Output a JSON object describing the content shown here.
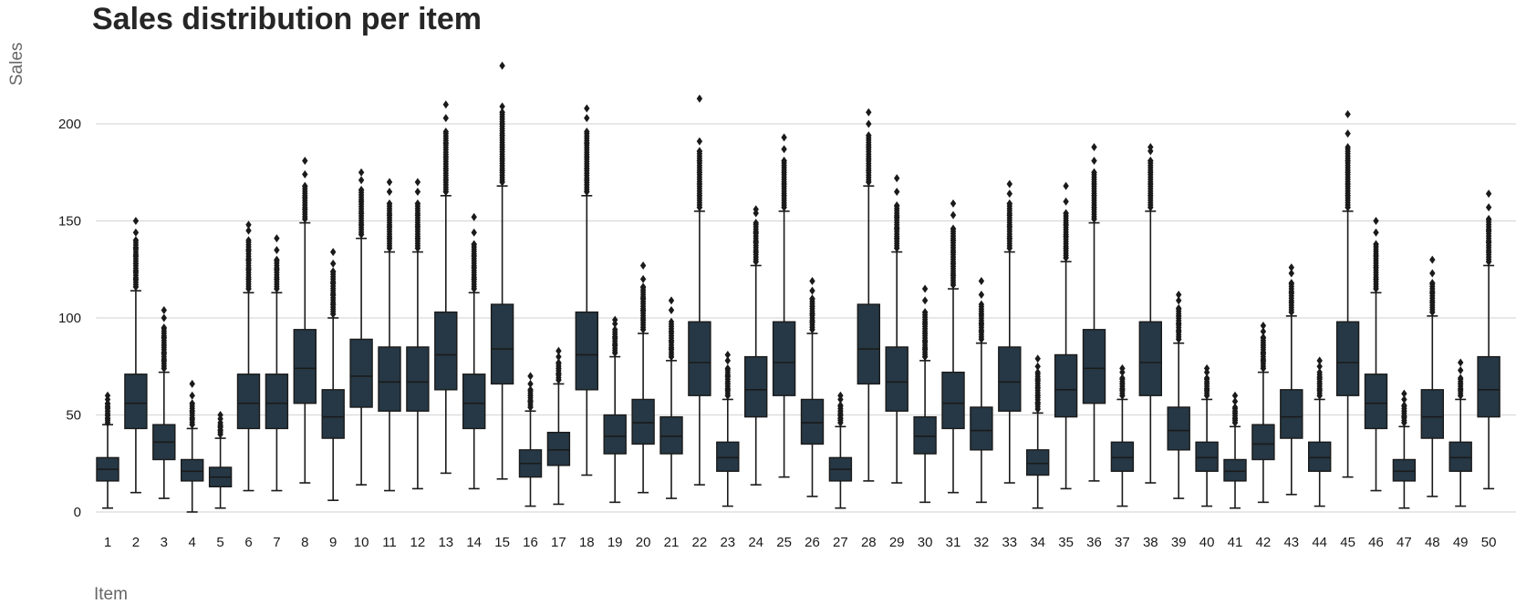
{
  "chart_data": {
    "type": "boxplot",
    "title": "Sales distribution per item",
    "xlabel": "Item",
    "ylabel": "Sales",
    "ylim": [
      0,
      230
    ],
    "yticks": [
      0,
      50,
      100,
      150,
      200
    ],
    "grid": "horizontal",
    "box_color": "#263845",
    "line_color": "#1a1a1a",
    "outlier_marker": "diamond",
    "categories": [
      "1",
      "2",
      "3",
      "4",
      "5",
      "6",
      "7",
      "8",
      "9",
      "10",
      "11",
      "12",
      "13",
      "14",
      "15",
      "16",
      "17",
      "18",
      "19",
      "20",
      "21",
      "22",
      "23",
      "24",
      "25",
      "26",
      "27",
      "28",
      "29",
      "30",
      "31",
      "32",
      "33",
      "34",
      "35",
      "36",
      "37",
      "38",
      "39",
      "40",
      "41",
      "42",
      "43",
      "44",
      "45",
      "46",
      "47",
      "48",
      "49",
      "50"
    ],
    "boxes": [
      {
        "whislo": 2,
        "q1": 16,
        "med": 22,
        "q3": 28,
        "whishi": 45,
        "fliers": [
          46,
          48,
          50,
          52,
          54,
          56,
          58,
          60
        ]
      },
      {
        "whislo": 10,
        "q1": 43,
        "med": 56,
        "q3": 71,
        "whishi": 114,
        "fliers": [
          116,
          120,
          124,
          128,
          132,
          136,
          140,
          144,
          150
        ]
      },
      {
        "whislo": 7,
        "q1": 27,
        "med": 36,
        "q3": 45,
        "whishi": 72,
        "fliers": [
          74,
          78,
          82,
          86,
          90,
          95,
          100,
          104
        ]
      },
      {
        "whislo": 0,
        "q1": 16,
        "med": 21,
        "q3": 27,
        "whishi": 43,
        "fliers": [
          45,
          48,
          52,
          56,
          60,
          66
        ]
      },
      {
        "whislo": 2,
        "q1": 13,
        "med": 18,
        "q3": 23,
        "whishi": 38,
        "fliers": [
          40,
          42,
          44,
          46,
          48,
          50
        ]
      },
      {
        "whislo": 11,
        "q1": 43,
        "med": 56,
        "q3": 71,
        "whishi": 113,
        "fliers": [
          115,
          120,
          125,
          130,
          135,
          140,
          145,
          148
        ]
      },
      {
        "whislo": 11,
        "q1": 43,
        "med": 56,
        "q3": 71,
        "whishi": 113,
        "fliers": [
          115,
          120,
          125,
          130,
          135,
          141
        ]
      },
      {
        "whislo": 15,
        "q1": 56,
        "med": 74,
        "q3": 94,
        "whishi": 149,
        "fliers": [
          151,
          156,
          162,
          168,
          174,
          181
        ]
      },
      {
        "whislo": 6,
        "q1": 38,
        "med": 49,
        "q3": 63,
        "whishi": 100,
        "fliers": [
          102,
          107,
          112,
          118,
          124,
          128,
          134
        ]
      },
      {
        "whislo": 14,
        "q1": 54,
        "med": 70,
        "q3": 89,
        "whishi": 141,
        "fliers": [
          143,
          148,
          154,
          160,
          166,
          171,
          175
        ]
      },
      {
        "whislo": 11,
        "q1": 52,
        "med": 67,
        "q3": 85,
        "whishi": 134,
        "fliers": [
          136,
          141,
          147,
          153,
          159,
          165,
          170
        ]
      },
      {
        "whislo": 12,
        "q1": 52,
        "med": 67,
        "q3": 85,
        "whishi": 134,
        "fliers": [
          136,
          141,
          147,
          153,
          159,
          165,
          170
        ]
      },
      {
        "whislo": 20,
        "q1": 63,
        "med": 81,
        "q3": 103,
        "whishi": 163,
        "fliers": [
          165,
          171,
          177,
          183,
          190,
          196,
          203,
          210
        ]
      },
      {
        "whislo": 12,
        "q1": 43,
        "med": 56,
        "q3": 71,
        "whishi": 113,
        "fliers": [
          115,
          120,
          126,
          132,
          138,
          144,
          152
        ]
      },
      {
        "whislo": 17,
        "q1": 66,
        "med": 84,
        "q3": 107,
        "whishi": 168,
        "fliers": [
          170,
          176,
          182,
          188,
          194,
          200,
          206,
          209,
          230
        ]
      },
      {
        "whislo": 3,
        "q1": 18,
        "med": 25,
        "q3": 32,
        "whishi": 52,
        "fliers": [
          54,
          57,
          60,
          63,
          66,
          70
        ]
      },
      {
        "whislo": 4,
        "q1": 24,
        "med": 32,
        "q3": 41,
        "whishi": 66,
        "fliers": [
          68,
          71,
          74,
          77,
          80,
          83
        ]
      },
      {
        "whislo": 19,
        "q1": 63,
        "med": 81,
        "q3": 103,
        "whishi": 163,
        "fliers": [
          165,
          171,
          177,
          183,
          190,
          196,
          203,
          208
        ]
      },
      {
        "whislo": 5,
        "q1": 30,
        "med": 39,
        "q3": 50,
        "whishi": 80,
        "fliers": [
          82,
          86,
          90,
          94,
          97,
          99
        ]
      },
      {
        "whislo": 10,
        "q1": 35,
        "med": 46,
        "q3": 58,
        "whishi": 92,
        "fliers": [
          94,
          99,
          104,
          110,
          116,
          120,
          127
        ]
      },
      {
        "whislo": 7,
        "q1": 30,
        "med": 39,
        "q3": 49,
        "whishi": 78,
        "fliers": [
          80,
          84,
          88,
          93,
          98,
          104,
          109
        ]
      },
      {
        "whislo": 14,
        "q1": 60,
        "med": 77,
        "q3": 98,
        "whishi": 155,
        "fliers": [
          157,
          163,
          169,
          175,
          181,
          186,
          191,
          213
        ]
      },
      {
        "whislo": 3,
        "q1": 21,
        "med": 28,
        "q3": 36,
        "whishi": 58,
        "fliers": [
          60,
          63,
          66,
          70,
          74,
          78,
          81
        ]
      },
      {
        "whislo": 14,
        "q1": 49,
        "med": 63,
        "q3": 80,
        "whishi": 127,
        "fliers": [
          129,
          134,
          139,
          144,
          149,
          154,
          156
        ]
      },
      {
        "whislo": 18,
        "q1": 60,
        "med": 77,
        "q3": 98,
        "whishi": 155,
        "fliers": [
          157,
          163,
          169,
          175,
          181,
          187,
          193
        ]
      },
      {
        "whislo": 8,
        "q1": 35,
        "med": 46,
        "q3": 58,
        "whishi": 92,
        "fliers": [
          94,
          98,
          102,
          106,
          110,
          114,
          119
        ]
      },
      {
        "whislo": 2,
        "q1": 16,
        "med": 22,
        "q3": 28,
        "whishi": 44,
        "fliers": [
          46,
          48,
          50,
          52,
          55,
          58,
          60
        ]
      },
      {
        "whislo": 16,
        "q1": 66,
        "med": 84,
        "q3": 107,
        "whishi": 168,
        "fliers": [
          170,
          176,
          182,
          188,
          194,
          200,
          206
        ]
      },
      {
        "whislo": 15,
        "q1": 52,
        "med": 67,
        "q3": 85,
        "whishi": 134,
        "fliers": [
          136,
          141,
          146,
          152,
          158,
          165,
          172
        ]
      },
      {
        "whislo": 5,
        "q1": 30,
        "med": 39,
        "q3": 49,
        "whishi": 78,
        "fliers": [
          80,
          84,
          88,
          92,
          97,
          103,
          109,
          115
        ]
      },
      {
        "whislo": 10,
        "q1": 43,
        "med": 56,
        "q3": 72,
        "whishi": 115,
        "fliers": [
          117,
          122,
          128,
          134,
          140,
          146,
          153,
          159
        ]
      },
      {
        "whislo": 5,
        "q1": 32,
        "med": 42,
        "q3": 54,
        "whishi": 87,
        "fliers": [
          89,
          93,
          97,
          102,
          107,
          112,
          119
        ]
      },
      {
        "whislo": 15,
        "q1": 52,
        "med": 67,
        "q3": 85,
        "whishi": 134,
        "fliers": [
          136,
          141,
          147,
          153,
          159,
          164,
          169
        ]
      },
      {
        "whislo": 2,
        "q1": 19,
        "med": 25,
        "q3": 32,
        "whishi": 51,
        "fliers": [
          53,
          56,
          60,
          64,
          68,
          72,
          75,
          79
        ]
      },
      {
        "whislo": 12,
        "q1": 49,
        "med": 63,
        "q3": 81,
        "whishi": 129,
        "fliers": [
          131,
          136,
          142,
          148,
          154,
          160,
          168
        ]
      },
      {
        "whislo": 16,
        "q1": 56,
        "med": 74,
        "q3": 94,
        "whishi": 149,
        "fliers": [
          151,
          157,
          163,
          169,
          175,
          181,
          188
        ]
      },
      {
        "whislo": 3,
        "q1": 21,
        "med": 28,
        "q3": 36,
        "whishi": 58,
        "fliers": [
          60,
          63,
          66,
          69,
          72,
          74
        ]
      },
      {
        "whislo": 15,
        "q1": 60,
        "med": 77,
        "q3": 98,
        "whishi": 155,
        "fliers": [
          157,
          163,
          169,
          175,
          181,
          186,
          188
        ]
      },
      {
        "whislo": 7,
        "q1": 32,
        "med": 42,
        "q3": 54,
        "whishi": 87,
        "fliers": [
          89,
          93,
          97,
          101,
          105,
          109,
          112
        ]
      },
      {
        "whislo": 3,
        "q1": 21,
        "med": 28,
        "q3": 36,
        "whishi": 58,
        "fliers": [
          60,
          63,
          66,
          69,
          72,
          74
        ]
      },
      {
        "whislo": 2,
        "q1": 16,
        "med": 21,
        "q3": 27,
        "whishi": 44,
        "fliers": [
          46,
          48,
          51,
          54,
          57,
          60
        ]
      },
      {
        "whislo": 5,
        "q1": 27,
        "med": 35,
        "q3": 45,
        "whishi": 72,
        "fliers": [
          74,
          78,
          82,
          86,
          90,
          93,
          96
        ]
      },
      {
        "whislo": 9,
        "q1": 38,
        "med": 49,
        "q3": 63,
        "whishi": 101,
        "fliers": [
          103,
          108,
          113,
          118,
          123,
          126
        ]
      },
      {
        "whislo": 3,
        "q1": 21,
        "med": 28,
        "q3": 36,
        "whishi": 58,
        "fliers": [
          60,
          63,
          66,
          69,
          72,
          75,
          78
        ]
      },
      {
        "whislo": 18,
        "q1": 60,
        "med": 77,
        "q3": 98,
        "whishi": 155,
        "fliers": [
          157,
          163,
          169,
          175,
          181,
          188,
          195,
          205
        ]
      },
      {
        "whislo": 11,
        "q1": 43,
        "med": 56,
        "q3": 71,
        "whishi": 113,
        "fliers": [
          115,
          120,
          126,
          132,
          138,
          144,
          150
        ]
      },
      {
        "whislo": 2,
        "q1": 16,
        "med": 21,
        "q3": 27,
        "whishi": 44,
        "fliers": [
          46,
          49,
          52,
          55,
          58,
          61
        ]
      },
      {
        "whislo": 8,
        "q1": 38,
        "med": 49,
        "q3": 63,
        "whishi": 101,
        "fliers": [
          103,
          108,
          113,
          118,
          123,
          130
        ]
      },
      {
        "whislo": 3,
        "q1": 21,
        "med": 28,
        "q3": 36,
        "whishi": 58,
        "fliers": [
          60,
          63,
          66,
          69,
          73,
          77
        ]
      },
      {
        "whislo": 12,
        "q1": 49,
        "med": 63,
        "q3": 80,
        "whishi": 127,
        "fliers": [
          129,
          134,
          139,
          145,
          151,
          157,
          164
        ]
      }
    ]
  }
}
